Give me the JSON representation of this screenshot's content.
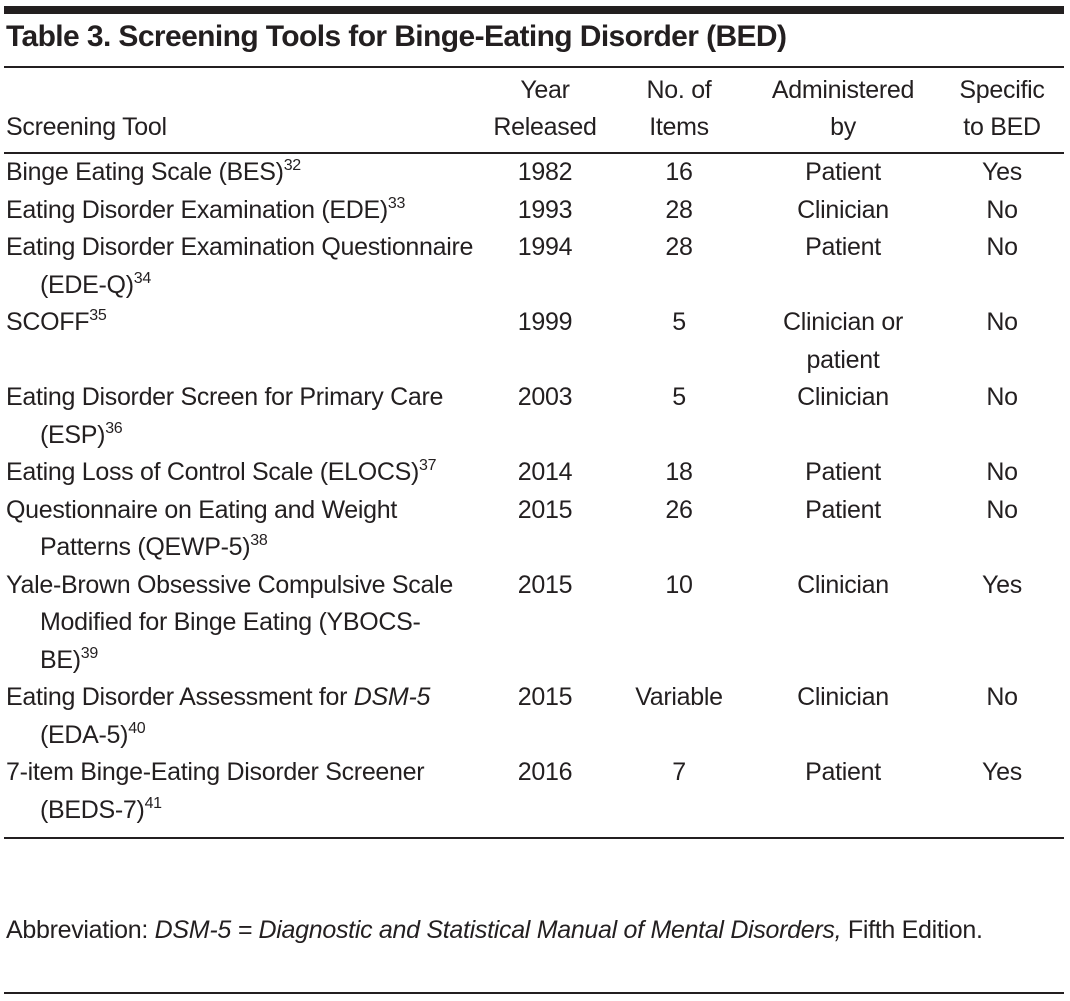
{
  "title": "Table 3. Screening Tools for Binge-Eating Disorder (BED)",
  "header": [
    [
      "Screening Tool"
    ],
    [
      "Year",
      "Released"
    ],
    [
      "No. of",
      "Items"
    ],
    [
      "Administered",
      "by"
    ],
    [
      "Specific",
      "to BED"
    ]
  ],
  "rows": [
    {
      "name_parts": [
        {
          "text": "Binge Eating Scale (BES)"
        }
      ],
      "ref": "32",
      "year": 1982,
      "items": 16,
      "administered": "Patient",
      "specific": "Yes"
    },
    {
      "name_parts": [
        {
          "text": "Eating Disorder Examination (EDE)"
        }
      ],
      "ref": "33",
      "year": 1993,
      "items": 28,
      "administered": "Clinician",
      "specific": "No"
    },
    {
      "name_parts": [
        {
          "text": "Eating Disorder Examination Questionnaire (EDE-Q)"
        }
      ],
      "ref": "34",
      "year": 1994,
      "items": 28,
      "administered": "Patient",
      "specific": "No"
    },
    {
      "name_parts": [
        {
          "text": "SCOFF"
        }
      ],
      "ref": "35",
      "year": 1999,
      "items": 5,
      "administered": "Clinician or patient",
      "specific": "No"
    },
    {
      "name_parts": [
        {
          "text": "Eating Disorder Screen for Primary Care (ESP)"
        }
      ],
      "ref": "36",
      "year": 2003,
      "items": 5,
      "administered": "Clinician",
      "specific": "No"
    },
    {
      "name_parts": [
        {
          "text": "Eating Loss of Control Scale (ELOCS)"
        }
      ],
      "ref": "37",
      "year": 2014,
      "items": 18,
      "administered": "Patient",
      "specific": "No"
    },
    {
      "name_parts": [
        {
          "text": "Questionnaire on Eating and Weight Patterns (QEWP-5)"
        }
      ],
      "ref": "38",
      "year": 2015,
      "items": 26,
      "administered": "Patient",
      "specific": "No"
    },
    {
      "name_parts": [
        {
          "text": "Yale-Brown Obsessive Compulsive Scale Modified for Binge Eating (YBOCS-BE)"
        }
      ],
      "ref": "39",
      "year": 2015,
      "items": 10,
      "administered": "Clinician",
      "specific": "Yes"
    },
    {
      "name_parts": [
        {
          "text": "Eating Disorder Assessment for "
        },
        {
          "text": "DSM-5",
          "italic": true
        },
        {
          "text": " (EDA-5)"
        }
      ],
      "ref": "40",
      "year": 2015,
      "items": "Variable",
      "administered": "Clinician",
      "specific": "No"
    },
    {
      "name_parts": [
        {
          "text": "7-item Binge-Eating Disorder Screener (BEDS-7)"
        }
      ],
      "ref": "41",
      "year": 2016,
      "items": 7,
      "administered": "Patient",
      "specific": "Yes"
    }
  ],
  "footnote": [
    {
      "text": "Abbreviation: "
    },
    {
      "text": "DSM-5 = Diagnostic and Statistical Manual of Mental Disorders,",
      "italic": true
    },
    {
      "text": " Fifth Edition."
    }
  ]
}
